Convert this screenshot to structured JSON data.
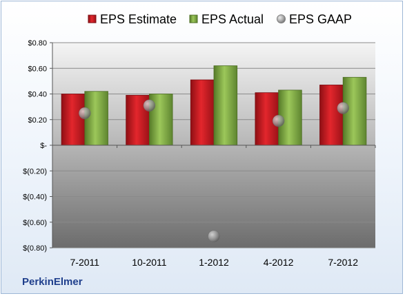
{
  "company": "PerkinElmer",
  "chart_data": {
    "type": "bar",
    "categories": [
      "7-2011",
      "10-2011",
      "1-2012",
      "4-2012",
      "7-2012"
    ],
    "series": [
      {
        "name": "EPS Estimate",
        "kind": "bar",
        "color": "#c8161d",
        "values": [
          0.4,
          0.39,
          0.51,
          0.41,
          0.47
        ]
      },
      {
        "name": "EPS Actual",
        "kind": "bar",
        "color": "#76a33a",
        "values": [
          0.42,
          0.4,
          0.62,
          0.43,
          0.53
        ]
      },
      {
        "name": "EPS GAAP",
        "kind": "scatter",
        "color": "#9a9a9a",
        "values": [
          0.25,
          0.31,
          -0.71,
          0.19,
          0.29
        ]
      }
    ],
    "ylim": [
      -0.8,
      0.8
    ],
    "yticks": [
      0.8,
      0.6,
      0.4,
      0.2,
      0,
      -0.2,
      -0.4,
      -0.6,
      -0.8
    ],
    "ytick_labels": [
      "$0.80",
      "$0.60",
      "$0.40",
      "$0.20",
      "$-",
      "$(0.20)",
      "$(0.40)",
      "$(0.60)",
      "$(0.80)"
    ],
    "grid": true,
    "legend_position": "top"
  }
}
